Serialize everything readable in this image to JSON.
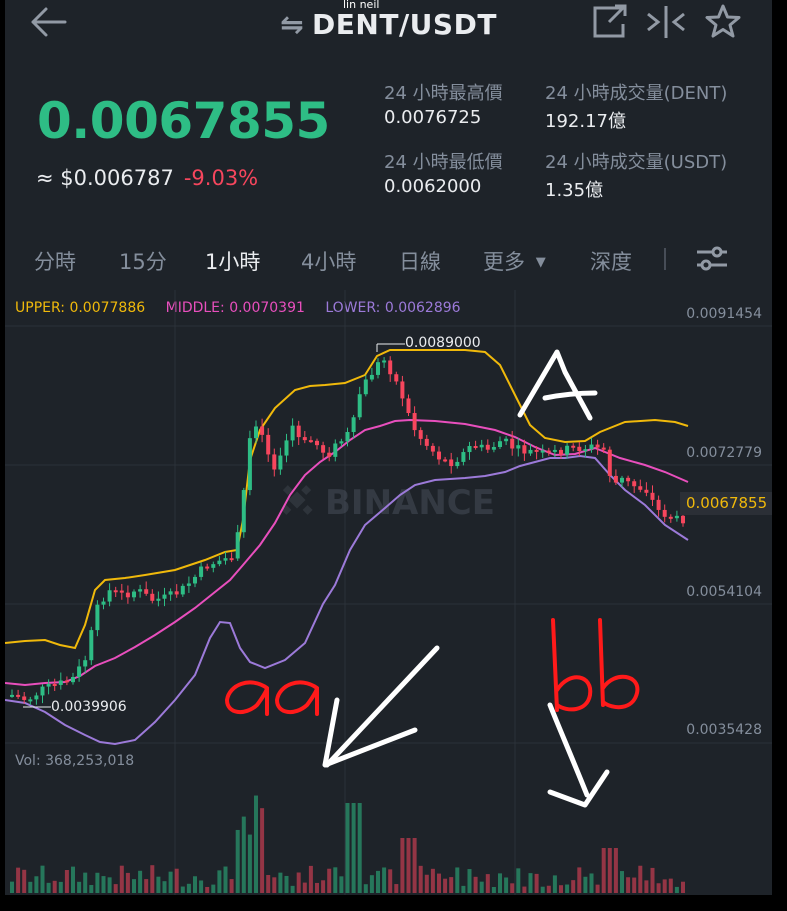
{
  "header": {
    "pair": "DENT/USDT",
    "watermark_user": "lin neil",
    "back_icon": "back-arrow-icon",
    "swap_icon": "swap-icon",
    "share_icon": "external-link-icon",
    "compare_icon": "compare-icon",
    "favorite_icon": "star-icon"
  },
  "price": {
    "last": "0.0067855",
    "fiat": "≈ $0.006787",
    "change": "-9.03%"
  },
  "stats": {
    "high_label": "24 小時最高價",
    "high_value": "0.0076725",
    "low_label": "24 小時最低價",
    "low_value": "0.0062000",
    "vol_dent_label": "24 小時成交量(DENT)",
    "vol_dent_value": "192.17億",
    "vol_usdt_label": "24 小時成交量(USDT)",
    "vol_usdt_value": "1.35億"
  },
  "tabs": {
    "t1": "分時",
    "t2": "15分",
    "t3": "1小時",
    "t4": "4小時",
    "t5": "日線",
    "t6": "更多",
    "t7": "深度",
    "active": "1小時"
  },
  "bollinger": {
    "upper": "UPPER: 0.0077886",
    "middle": "MIDDLE: 0.0070391",
    "lower": "LOWER: 0.0062896"
  },
  "axis": {
    "y1": "0.0091454",
    "y2": "0.0072779",
    "y3": "0.0054104",
    "y4": "0.0035428"
  },
  "current_price_tag": "0.0067855",
  "chart_watermark": "BINANCE",
  "annotations": {
    "high": "0.0089000",
    "low": "0.0039906"
  },
  "volume_label": "Vol: 368,253,018",
  "handwriting": {
    "a": "A",
    "aa": "aa",
    "bb": "bb"
  },
  "colors": {
    "up": "#2ebd85",
    "down": "#f6465d",
    "upper": "#f0b90b",
    "middle": "#e84fbd",
    "lower": "#9c7ad9",
    "ink_red": "#ff1a1a",
    "ink_white": "#ffffff"
  }
}
